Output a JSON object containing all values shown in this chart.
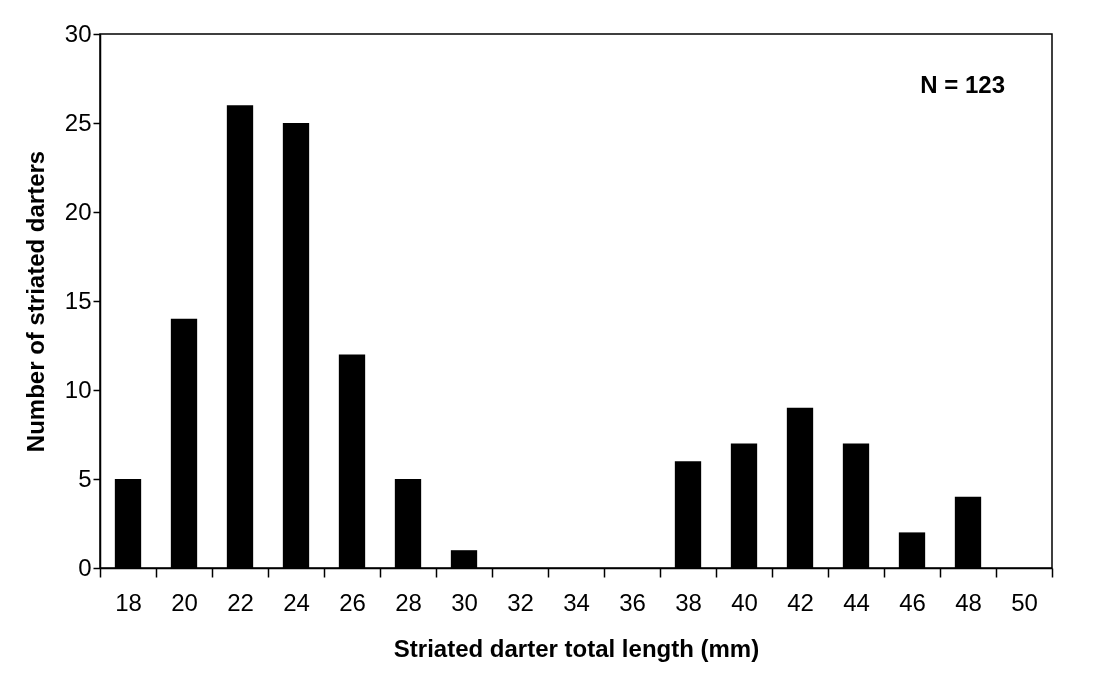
{
  "chart_data": {
    "type": "bar",
    "categories": [
      "18",
      "20",
      "22",
      "24",
      "26",
      "28",
      "30",
      "32",
      "34",
      "36",
      "38",
      "40",
      "42",
      "44",
      "46",
      "48",
      "50"
    ],
    "values": [
      5,
      14,
      26,
      25,
      12,
      5,
      1,
      0,
      0,
      0,
      6,
      7,
      9,
      7,
      2,
      4,
      0
    ],
    "color": "#000000",
    "xlabel": "Striated darter total length (mm)",
    "ylabel": "Number of striated darters",
    "ylim": [
      0,
      30
    ],
    "yticks": [
      0,
      5,
      10,
      15,
      20,
      25,
      30
    ],
    "annotations": [
      "N = 123"
    ],
    "grid": false
  }
}
